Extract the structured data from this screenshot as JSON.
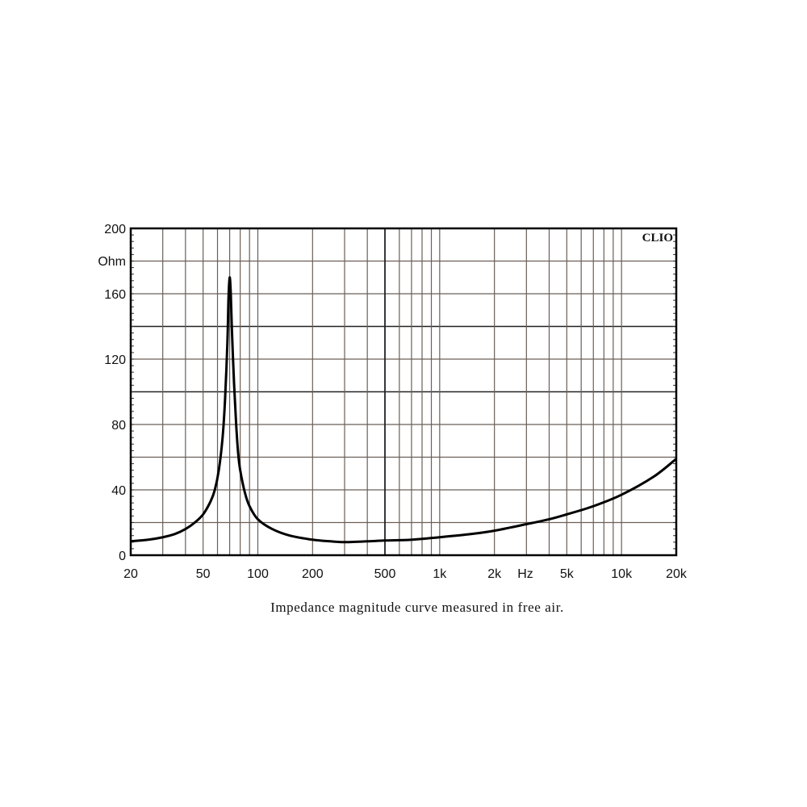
{
  "chart_data": {
    "type": "line",
    "title": "",
    "caption": "Impedance magnitude curve measured in free air.",
    "brand": "CLIO",
    "xlabel": "Hz",
    "ylabel": "Ohm",
    "xscale": "log",
    "xlim": [
      20,
      20000
    ],
    "ylim": [
      0,
      200
    ],
    "grid": true,
    "x_ticks": [
      {
        "value": 20,
        "label": "20"
      },
      {
        "value": 50,
        "label": "50"
      },
      {
        "value": 100,
        "label": "100"
      },
      {
        "value": 200,
        "label": "200"
      },
      {
        "value": 500,
        "label": "500"
      },
      {
        "value": 1000,
        "label": "1k"
      },
      {
        "value": 2000,
        "label": "2k"
      },
      {
        "value": 5000,
        "label": "5k"
      },
      {
        "value": 10000,
        "label": "10k"
      },
      {
        "value": 20000,
        "label": "20k"
      }
    ],
    "y_ticks": [
      {
        "value": 0,
        "label": "0"
      },
      {
        "value": 40,
        "label": "40"
      },
      {
        "value": 80,
        "label": "80"
      },
      {
        "value": 120,
        "label": "120"
      },
      {
        "value": 160,
        "label": "160"
      },
      {
        "value": 200,
        "label": "200"
      }
    ],
    "series": [
      {
        "name": "Impedance",
        "color": "#000000",
        "x": [
          20,
          25,
          30,
          35,
          40,
          45,
          50,
          55,
          58,
          61,
          64,
          66,
          68,
          69,
          70,
          71,
          72,
          74,
          76,
          78,
          80,
          85,
          90,
          100,
          120,
          150,
          200,
          250,
          300,
          400,
          500,
          700,
          1000,
          1500,
          2000,
          3000,
          4000,
          5000,
          7000,
          10000,
          15000,
          20000
        ],
        "y": [
          8.5,
          9.5,
          11,
          13,
          16,
          20,
          25,
          33,
          40,
          52,
          72,
          95,
          130,
          158,
          170,
          160,
          138,
          105,
          80,
          62,
          52,
          38,
          30,
          22,
          16,
          12,
          9.5,
          8.5,
          8,
          8.5,
          9,
          9.5,
          11,
          13,
          15,
          19,
          22,
          25,
          30,
          37,
          48,
          59
        ]
      }
    ]
  }
}
